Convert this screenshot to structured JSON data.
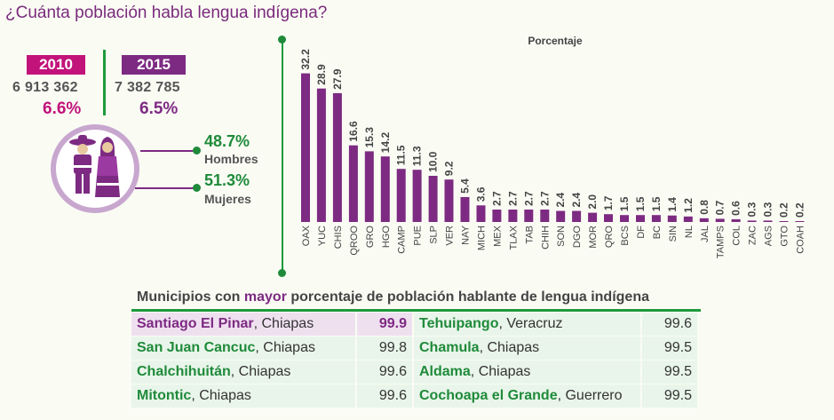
{
  "title": "¿Cuánta población habla lengua indígena?",
  "years": [
    {
      "year": "2010",
      "population": "6 913 362",
      "percent": "6.6%",
      "color": "#c2137a"
    },
    {
      "year": "2015",
      "population": "7 382 785",
      "percent": "6.5%",
      "color": "#7d2a82"
    }
  ],
  "gender": {
    "men_pct": "48.7%",
    "men_label": "Hombres",
    "women_pct": "51.3%",
    "women_label": "Mujeres"
  },
  "chart_data": {
    "type": "bar",
    "title": "Porcentaje",
    "categories": [
      "OAX",
      "YUC",
      "CHIS",
      "QROO",
      "GRO",
      "HGO",
      "CAMP",
      "PUE",
      "SLP",
      "VER",
      "NAY",
      "MICH",
      "MEX",
      "TLAX",
      "TAB",
      "CHIH",
      "SON",
      "DGO",
      "MOR",
      "QRO",
      "BCS",
      "DF",
      "BC",
      "SIN",
      "NL",
      "JAL",
      "TAMPS",
      "COL",
      "ZAC",
      "AGS",
      "GTO",
      "COAH"
    ],
    "values": [
      32.2,
      28.9,
      27.9,
      16.6,
      15.3,
      14.2,
      11.5,
      11.3,
      10.0,
      9.2,
      5.4,
      3.6,
      2.7,
      2.7,
      2.7,
      2.7,
      2.4,
      2.4,
      2.0,
      1.7,
      1.5,
      1.5,
      1.5,
      1.4,
      1.2,
      0.8,
      0.7,
      0.6,
      0.3,
      0.3,
      0.2,
      0.2
    ],
    "labels": [
      "32.2",
      "28.9",
      "27.9",
      "16.6",
      "15.3",
      "14.2",
      "11.5",
      "11.3",
      "10.0",
      "9.2",
      "5.4",
      "3.6",
      "2.7",
      "2.7",
      "2.7",
      "2.7",
      "2.4",
      "2.4",
      "2.0",
      "1.7",
      "1.5",
      "1.5",
      "1.5",
      "1.4",
      "1.2",
      "0.8",
      "0.7",
      "0.6",
      "0.3",
      "0.3",
      "0.2",
      "0.2"
    ],
    "color": "#7d2a82",
    "xlabel": "",
    "ylabel": ""
  },
  "table": {
    "heading_pre": "Municipios con ",
    "heading_hl": "mayor",
    "heading_post": " porcentaje de población hablante de lengua indígena",
    "rows": [
      {
        "m1": "Santiago El Pinar",
        "s1": ", Chiapas",
        "v1": "99.9",
        "m2": "Tehuipango",
        "s2": ", Veracruz",
        "v2": "99.6"
      },
      {
        "m1": "San Juan Cancuc",
        "s1": ", Chiapas",
        "v1": "99.8",
        "m2": "Chamula",
        "s2": ", Chiapas",
        "v2": "99.5"
      },
      {
        "m1": "Chalchihuitán",
        "s1": ", Chiapas",
        "v1": "99.6",
        "m2": "Aldama",
        "s2": ", Chiapas",
        "v2": "99.5"
      },
      {
        "m1": "Mitontic",
        "s1": ", Chiapas",
        "v1": "99.6",
        "m2": "Cochoapa el Grande",
        "s2": ", Guerrero",
        "v2": "99.5"
      }
    ]
  }
}
